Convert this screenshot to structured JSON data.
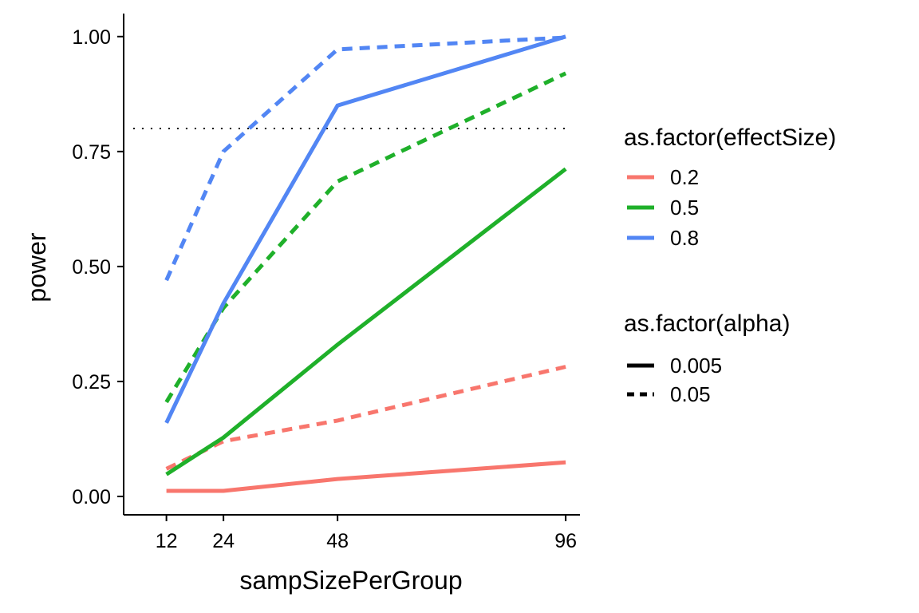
{
  "chart_data": {
    "type": "line",
    "title": "",
    "xlabel": "sampSizePerGroup",
    "ylabel": "power",
    "x": [
      12,
      24,
      48,
      96
    ],
    "xlim": [
      3,
      99
    ],
    "ylim": [
      -0.04,
      1.05
    ],
    "x_ticks": [
      12,
      24,
      48,
      96
    ],
    "y_ticks": [
      0.0,
      0.25,
      0.5,
      0.75,
      1.0
    ],
    "y_tick_labels": [
      "0.00",
      "0.25",
      "0.50",
      "0.75",
      "1.00"
    ],
    "grid": false,
    "reference_line": {
      "y": 0.8,
      "x_from": 5,
      "x_to": 96,
      "style": "dotted",
      "color": "#000000"
    },
    "series": [
      {
        "effectSize": "0.2",
        "alpha": "0.005",
        "color": "#F8766D",
        "dash": "solid",
        "values": [
          0.012,
          0.012,
          0.038,
          0.074
        ]
      },
      {
        "effectSize": "0.2",
        "alpha": "0.05",
        "color": "#F8766D",
        "dash": "dashed",
        "values": [
          0.06,
          0.12,
          0.165,
          0.282
        ]
      },
      {
        "effectSize": "0.5",
        "alpha": "0.005",
        "color": "#1FB02A",
        "dash": "solid",
        "values": [
          0.048,
          0.128,
          0.33,
          0.712
        ]
      },
      {
        "effectSize": "0.5",
        "alpha": "0.05",
        "color": "#1FB02A",
        "dash": "dashed",
        "values": [
          0.205,
          0.41,
          0.685,
          0.92
        ]
      },
      {
        "effectSize": "0.8",
        "alpha": "0.005",
        "color": "#5286F4",
        "dash": "solid",
        "values": [
          0.16,
          0.42,
          0.85,
          1.0
        ]
      },
      {
        "effectSize": "0.8",
        "alpha": "0.05",
        "color": "#5286F4",
        "dash": "dashed",
        "values": [
          0.47,
          0.75,
          0.972,
          0.998
        ]
      }
    ],
    "legend": {
      "placement": "right",
      "color_title": "as.factor(effectSize)",
      "color_items": [
        {
          "label": "0.2",
          "color": "#F8766D"
        },
        {
          "label": "0.5",
          "color": "#1FB02A"
        },
        {
          "label": "0.8",
          "color": "#5286F4"
        }
      ],
      "linetype_title": "as.factor(alpha)",
      "linetype_items": [
        {
          "label": "0.005",
          "dash": "solid"
        },
        {
          "label": "0.05",
          "dash": "dashed"
        }
      ]
    }
  }
}
